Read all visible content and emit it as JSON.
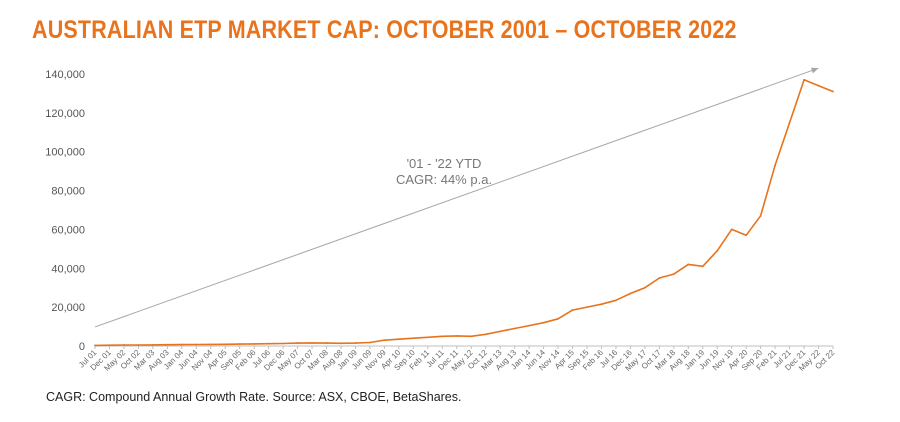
{
  "title": "AUSTRALIAN ETP MARKET CAP: OCTOBER 2001 – OCTOBER 2022",
  "footnote": "CAGR: Compound Annual Growth Rate. Source: ASX, CBOE, BetaShares.",
  "colors": {
    "accent": "#e8731c",
    "trend_arrow": "#a6a6a6",
    "axis": "#bfbfbf"
  },
  "chart_data": {
    "type": "line",
    "title": "AUSTRALIAN ETP MARKET CAP: OCTOBER 2001 – OCTOBER 2022",
    "xlabel": "",
    "ylabel": "",
    "ylim": [
      0,
      140000
    ],
    "yticks": [
      0,
      20000,
      40000,
      60000,
      80000,
      100000,
      120000,
      140000
    ],
    "ytick_labels": [
      "0",
      "20,000",
      "40,000",
      "60,000",
      "80,000",
      "100,000",
      "120,000",
      "140,000"
    ],
    "xtick_labels": [
      "Jul 01",
      "Dec 01",
      "May 02",
      "Oct 02",
      "Mar 03",
      "Aug 03",
      "Jan 04",
      "Jun 04",
      "Nov 04",
      "Apr 05",
      "Sep 05",
      "Feb 06",
      "Jul 06",
      "Dec 06",
      "May 07",
      "Oct 07",
      "Mar 08",
      "Aug 08",
      "Jan 09",
      "Jun 09",
      "Nov 09",
      "Apr 10",
      "Sep 10",
      "Feb 11",
      "Jul 11",
      "Dec 11",
      "May 12",
      "Oct 12",
      "Mar 13",
      "Aug 13",
      "Jan 14",
      "Jun 14",
      "Nov 14",
      "Apr 15",
      "Sep 15",
      "Feb 16",
      "Jul 16",
      "Dec 16",
      "May 17",
      "Oct 17",
      "Mar 18",
      "Aug 18",
      "Jan 19",
      "Jun 19",
      "Nov 19",
      "Apr 20",
      "Sep 20",
      "Feb 21",
      "Jul 21",
      "Dec 21",
      "May 22",
      "Oct 22"
    ],
    "grid": false,
    "legend": "none",
    "annotation": {
      "lines": [
        "'01 - '22 YTD",
        "CAGR: 44% p.a."
      ]
    },
    "trend_arrow": {
      "from": [
        "Jul 01",
        9800
      ],
      "to": [
        "May 22",
        143000
      ]
    },
    "series": [
      {
        "x": [
          "Jul 01",
          "Dec 01",
          "May 02",
          "Oct 02",
          "Mar 03",
          "Aug 03",
          "Jan 04",
          "Jun 04",
          "Nov 04",
          "Apr 05",
          "Sep 05",
          "Feb 06",
          "Jul 06",
          "Dec 06",
          "May 07",
          "Oct 07",
          "Mar 08",
          "Aug 08",
          "Jan 09",
          "Jun 09",
          "Nov 09",
          "Apr 10",
          "Sep 10",
          "Feb 11",
          "Jul 11",
          "Dec 11",
          "May 12",
          "Oct 12",
          "Mar 13",
          "Aug 13",
          "Jan 14",
          "Jun 14",
          "Nov 14",
          "Apr 15",
          "Sep 15",
          "Feb 16",
          "Jul 16",
          "Dec 16",
          "May 17",
          "Oct 17",
          "Mar 18",
          "Aug 18",
          "Jan 19",
          "Jun 19",
          "Nov 19",
          "Apr 20",
          "Sep 20",
          "Feb 21",
          "Jul 21",
          "Dec 21",
          "May 22",
          "Oct 22"
        ],
        "values": [
          300,
          400,
          500,
          500,
          550,
          650,
          700,
          750,
          800,
          900,
          1000,
          1100,
          1200,
          1300,
          1500,
          1600,
          1500,
          1400,
          1500,
          1800,
          3000,
          3500,
          4000,
          4500,
          5000,
          5200,
          5000,
          6000,
          7500,
          9000,
          10500,
          12000,
          14000,
          18500,
          20000,
          21500,
          23500,
          27000,
          30000,
          35000,
          37000,
          42000,
          41000,
          49000,
          60000,
          57000,
          67000,
          93000,
          115000,
          137000,
          134000,
          131000
        ]
      }
    ]
  }
}
